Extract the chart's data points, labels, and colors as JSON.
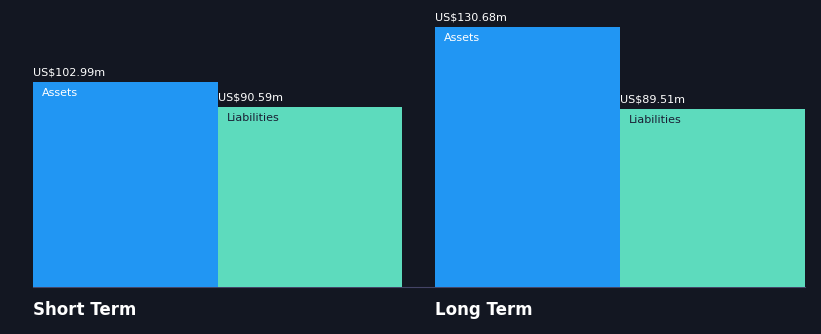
{
  "background_color": "#131722",
  "asset_color": "#2196F3",
  "liability_color": "#5DDBBD",
  "text_color_white": "#FFFFFF",
  "text_color_dark": "#1a2035",
  "short_term": {
    "label": "Short Term",
    "assets": 102.99,
    "liabilities": 90.59,
    "assets_label": "Assets",
    "liabilities_label": "Liabilities"
  },
  "long_term": {
    "label": "Long Term",
    "assets": 130.68,
    "liabilities": 89.51,
    "assets_label": "Assets",
    "liabilities_label": "Liabilities"
  },
  "figsize": [
    8.21,
    3.34
  ],
  "dpi": 100,
  "value_fontsize": 8,
  "label_fontsize": 8,
  "group_label_fontsize": 12
}
